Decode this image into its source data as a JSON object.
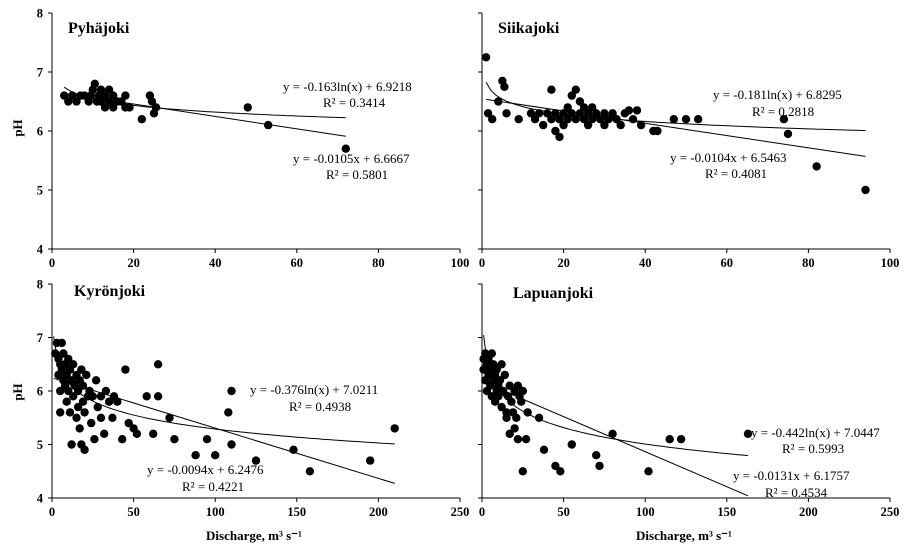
{
  "chart_data": [
    {
      "type": "scatter",
      "title": "Pyhäjoki",
      "xlabel": "",
      "ylabel": "pH",
      "xlim": [
        0,
        100
      ],
      "ylim": [
        4,
        8
      ],
      "xticks": [
        "0",
        "20",
        "40",
        "60",
        "80",
        "100"
      ],
      "yticks": [
        "4",
        "5",
        "6",
        "7",
        "8"
      ],
      "points": [
        [
          3,
          6.6
        ],
        [
          4,
          6.5
        ],
        [
          5,
          6.6
        ],
        [
          6,
          6.5
        ],
        [
          7,
          6.6
        ],
        [
          8,
          6.6
        ],
        [
          9,
          6.5
        ],
        [
          9.5,
          6.6
        ],
        [
          10,
          6.7
        ],
        [
          10.5,
          6.8
        ],
        [
          11,
          6.5
        ],
        [
          11.5,
          6.6
        ],
        [
          12,
          6.7
        ],
        [
          12,
          6.5
        ],
        [
          13,
          6.6
        ],
        [
          13,
          6.4
        ],
        [
          14,
          6.5
        ],
        [
          14,
          6.7
        ],
        [
          15,
          6.6
        ],
        [
          15,
          6.4
        ],
        [
          16,
          6.5
        ],
        [
          17,
          6.5
        ],
        [
          18,
          6.6
        ],
        [
          18,
          6.4
        ],
        [
          19,
          6.4
        ],
        [
          22,
          6.2
        ],
        [
          24,
          6.6
        ],
        [
          24.5,
          6.5
        ],
        [
          25,
          6.3
        ],
        [
          25.5,
          6.4
        ],
        [
          48,
          6.4
        ],
        [
          53,
          6.1
        ],
        [
          72,
          5.7
        ]
      ],
      "fits": [
        {
          "kind": "ln",
          "a": -0.163,
          "b": 6.9218,
          "x": [
            3,
            72
          ]
        },
        {
          "kind": "linear",
          "a": -0.0105,
          "b": 6.6667,
          "x": [
            3,
            72
          ]
        }
      ],
      "annotations": {
        "eq1": "y = -0.163ln(x) + 6.9218",
        "r1": "R² = 0.3414",
        "eq2": "y = -0.0105x + 6.6667",
        "r2": "R² = 0.5801"
      }
    },
    {
      "type": "scatter",
      "title": "Siikajoki",
      "xlabel": "",
      "ylabel": "",
      "xlim": [
        0,
        100
      ],
      "ylim": [
        4,
        8
      ],
      "xticks": [
        "0",
        "20",
        "40",
        "60",
        "80",
        "100"
      ],
      "yticks": [],
      "points": [
        [
          1,
          7.25
        ],
        [
          1.5,
          6.3
        ],
        [
          2.5,
          6.2
        ],
        [
          4,
          6.5
        ],
        [
          5,
          6.85
        ],
        [
          5.5,
          6.75
        ],
        [
          6,
          6.3
        ],
        [
          9,
          6.2
        ],
        [
          12,
          6.3
        ],
        [
          13,
          6.2
        ],
        [
          14,
          6.3
        ],
        [
          15,
          6.1
        ],
        [
          16,
          6.3
        ],
        [
          17,
          6.7
        ],
        [
          17,
          6.2
        ],
        [
          18,
          6.3
        ],
        [
          18,
          6.0
        ],
        [
          19,
          6.2
        ],
        [
          19,
          5.9
        ],
        [
          20,
          6.3
        ],
        [
          20,
          6.1
        ],
        [
          21,
          6.4
        ],
        [
          21,
          6.2
        ],
        [
          22,
          6.3
        ],
        [
          22,
          6.6
        ],
        [
          23,
          6.7
        ],
        [
          23,
          6.2
        ],
        [
          24,
          6.3
        ],
        [
          24,
          6.5
        ],
        [
          25,
          6.2
        ],
        [
          25,
          6.4
        ],
        [
          26,
          6.3
        ],
        [
          26,
          6.1
        ],
        [
          27,
          6.2
        ],
        [
          27,
          6.4
        ],
        [
          28,
          6.3
        ],
        [
          29,
          6.2
        ],
        [
          30,
          6.3
        ],
        [
          30,
          6.1
        ],
        [
          31,
          6.2
        ],
        [
          32,
          6.3
        ],
        [
          33,
          6.2
        ],
        [
          34,
          6.1
        ],
        [
          35,
          6.3
        ],
        [
          36,
          6.35
        ],
        [
          37,
          6.2
        ],
        [
          38,
          6.35
        ],
        [
          39,
          6.1
        ],
        [
          42,
          6.0
        ],
        [
          43,
          6.0
        ],
        [
          47,
          6.2
        ],
        [
          50,
          6.2
        ],
        [
          53,
          6.2
        ],
        [
          74,
          6.2
        ],
        [
          75,
          5.95
        ],
        [
          82,
          5.4
        ],
        [
          94,
          5.0
        ]
      ],
      "fits": [
        {
          "kind": "ln",
          "a": -0.181,
          "b": 6.8295,
          "x": [
            1,
            94
          ]
        },
        {
          "kind": "linear",
          "a": -0.0104,
          "b": 6.5463,
          "x": [
            1,
            94
          ]
        }
      ],
      "annotations": {
        "eq1": "y = -0.181ln(x) + 6.8295",
        "r1": "R² = 0.2818",
        "eq2": "y = -0.0104x + 6.5463",
        "r2": "R² = 0.4081"
      }
    },
    {
      "type": "scatter",
      "title": "Kyrönjoki",
      "xlabel": "Discharge, m³ s⁻¹",
      "ylabel": "pH",
      "xlim": [
        0,
        250
      ],
      "ylim": [
        4,
        8
      ],
      "xticks": [
        "0",
        "50",
        "100",
        "150",
        "200",
        "250"
      ],
      "yticks": [
        "4",
        "5",
        "6",
        "7",
        "8"
      ],
      "points": [
        [
          2,
          6.7
        ],
        [
          3,
          6.9
        ],
        [
          4,
          6.6
        ],
        [
          4,
          6.3
        ],
        [
          5,
          6.5
        ],
        [
          5,
          6.0
        ],
        [
          5,
          5.6
        ],
        [
          6,
          6.9
        ],
        [
          6,
          6.4
        ],
        [
          7,
          6.2
        ],
        [
          7,
          6.7
        ],
        [
          8,
          6.5
        ],
        [
          8,
          6.1
        ],
        [
          9,
          5.8
        ],
        [
          9,
          6.3
        ],
        [
          10,
          6.6
        ],
        [
          10,
          6.0
        ],
        [
          11,
          6.4
        ],
        [
          11,
          5.6
        ],
        [
          12,
          5.0
        ],
        [
          12,
          6.2
        ],
        [
          13,
          6.5
        ],
        [
          13,
          5.9
        ],
        [
          14,
          6.1
        ],
        [
          15,
          5.5
        ],
        [
          15,
          6.3
        ],
        [
          16,
          5.7
        ],
        [
          16,
          6.0
        ],
        [
          17,
          5.3
        ],
        [
          17,
          6.2
        ],
        [
          18,
          5.0
        ],
        [
          18,
          6.4
        ],
        [
          19,
          5.8
        ],
        [
          19,
          6.1
        ],
        [
          20,
          5.6
        ],
        [
          20,
          4.9
        ],
        [
          21,
          6.3
        ],
        [
          22,
          5.9
        ],
        [
          23,
          6.0
        ],
        [
          24,
          5.4
        ],
        [
          25,
          5.9
        ],
        [
          26,
          5.1
        ],
        [
          27,
          6.2
        ],
        [
          28,
          5.7
        ],
        [
          30,
          5.5
        ],
        [
          30,
          5.9
        ],
        [
          32,
          5.2
        ],
        [
          33,
          6.0
        ],
        [
          35,
          5.8
        ],
        [
          37,
          5.5
        ],
        [
          38,
          5.9
        ],
        [
          40,
          5.8
        ],
        [
          43,
          5.1
        ],
        [
          45,
          6.4
        ],
        [
          47,
          5.4
        ],
        [
          50,
          5.3
        ],
        [
          52,
          5.2
        ],
        [
          58,
          5.9
        ],
        [
          62,
          5.2
        ],
        [
          65,
          6.5
        ],
        [
          65,
          5.9
        ],
        [
          72,
          5.5
        ],
        [
          75,
          5.1
        ],
        [
          88,
          4.8
        ],
        [
          95,
          5.1
        ],
        [
          100,
          4.8
        ],
        [
          108,
          5.6
        ],
        [
          110,
          6.0
        ],
        [
          110,
          5.0
        ],
        [
          125,
          4.7
        ],
        [
          148,
          4.9
        ],
        [
          158,
          4.5
        ],
        [
          195,
          4.7
        ],
        [
          210,
          5.3
        ]
      ],
      "fits": [
        {
          "kind": "ln",
          "a": -0.376,
          "b": 7.0211,
          "x": [
            1,
            210
          ]
        },
        {
          "kind": "linear",
          "a": -0.0094,
          "b": 6.2476,
          "x": [
            1,
            210
          ]
        }
      ],
      "annotations": {
        "eq1": "y = -0.376ln(x) + 7.0211",
        "r1": "R² = 0.4938",
        "eq2": "y = -0.0094x + 6.2476",
        "r2": "R² = 0.4221"
      }
    },
    {
      "type": "scatter",
      "title": "Lapuanjoki",
      "xlabel": "Discharge, m³ s⁻¹",
      "ylabel": "",
      "xlim": [
        0,
        250
      ],
      "ylim": [
        4,
        8
      ],
      "xticks": [
        "0",
        "50",
        "100",
        "150",
        "200",
        "250"
      ],
      "yticks": [],
      "points": [
        [
          1,
          6.4
        ],
        [
          1,
          6.6
        ],
        [
          2,
          6.7
        ],
        [
          2,
          6.2
        ],
        [
          3,
          6.5
        ],
        [
          3,
          6.0
        ],
        [
          4,
          6.3
        ],
        [
          4,
          6.6
        ],
        [
          5,
          6.1
        ],
        [
          5,
          6.4
        ],
        [
          6,
          5.9
        ],
        [
          6,
          6.7
        ],
        [
          7,
          6.2
        ],
        [
          7,
          6.5
        ],
        [
          8,
          5.8
        ],
        [
          8,
          6.3
        ],
        [
          9,
          6.0
        ],
        [
          9,
          6.4
        ],
        [
          10,
          6.1
        ],
        [
          10,
          5.9
        ],
        [
          11,
          6.2
        ],
        [
          12,
          5.7
        ],
        [
          12,
          6.5
        ],
        [
          13,
          6.0
        ],
        [
          14,
          6.3
        ],
        [
          15,
          5.6
        ],
        [
          15,
          5.5
        ],
        [
          16,
          5.9
        ],
        [
          17,
          5.2
        ],
        [
          17,
          6.1
        ],
        [
          18,
          5.8
        ],
        [
          19,
          5.6
        ],
        [
          20,
          6.0
        ],
        [
          20,
          5.3
        ],
        [
          21,
          5.5
        ],
        [
          22,
          5.1
        ],
        [
          22,
          6.1
        ],
        [
          23,
          5.9
        ],
        [
          24,
          5.8
        ],
        [
          25,
          4.5
        ],
        [
          25,
          6.0
        ],
        [
          27,
          5.1
        ],
        [
          28,
          5.6
        ],
        [
          35,
          5.5
        ],
        [
          38,
          4.9
        ],
        [
          45,
          4.6
        ],
        [
          48,
          4.5
        ],
        [
          55,
          5.0
        ],
        [
          70,
          4.8
        ],
        [
          72,
          4.6
        ],
        [
          80,
          5.2
        ],
        [
          102,
          4.5
        ],
        [
          115,
          5.1
        ],
        [
          122,
          5.1
        ],
        [
          163,
          5.2
        ]
      ],
      "fits": [
        {
          "kind": "ln",
          "a": -0.442,
          "b": 7.0447,
          "x": [
            1,
            163
          ]
        },
        {
          "kind": "linear",
          "a": -0.0131,
          "b": 6.1757,
          "x": [
            1,
            163
          ]
        }
      ],
      "annotations": {
        "eq1": "y = -0.442ln(x) + 7.0447",
        "r1": "R² = 0.5993",
        "eq2": "y = -0.0131x + 6.1757",
        "r2": "R² = 0.4534"
      }
    }
  ]
}
